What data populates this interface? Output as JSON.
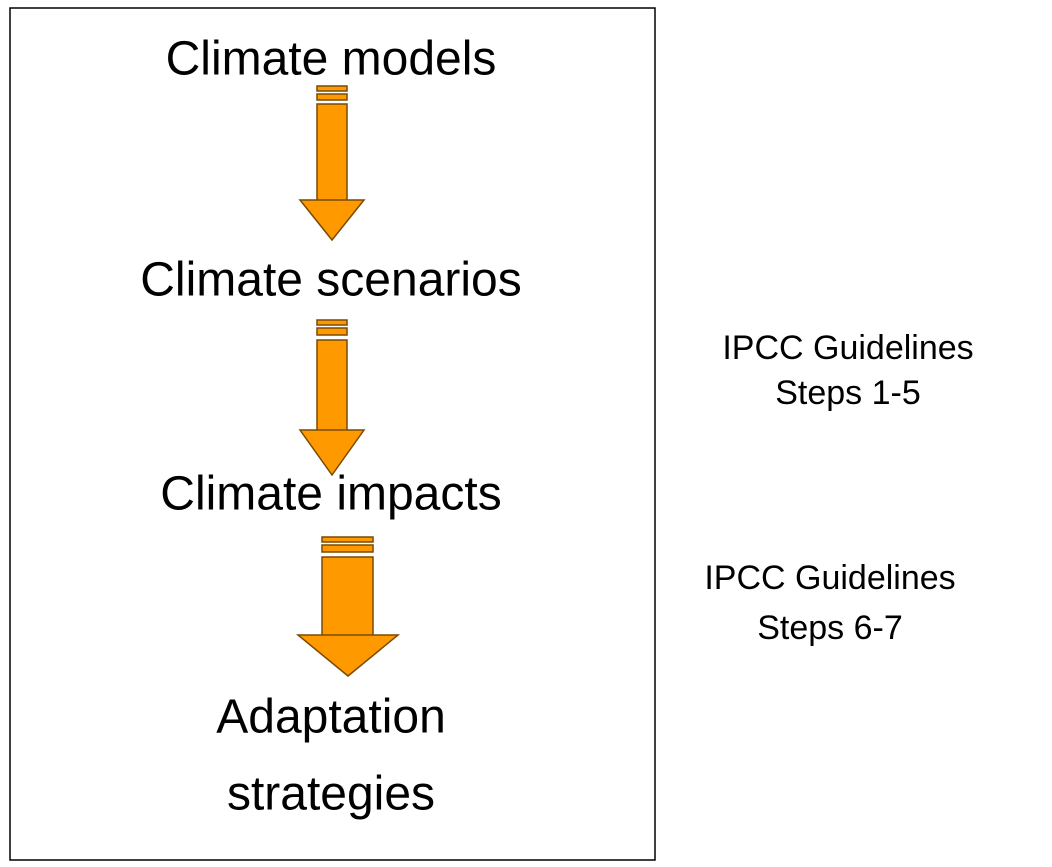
{
  "nodes": [
    {
      "lines": [
        "Climate models"
      ]
    },
    {
      "lines": [
        "Climate scenarios"
      ]
    },
    {
      "lines": [
        "Climate impacts"
      ]
    },
    {
      "lines": [
        "Adaptation",
        "strategies"
      ]
    }
  ],
  "notes": [
    {
      "lines": [
        "IPCC Guidelines",
        "Steps 1-5"
      ]
    },
    {
      "lines": [
        "IPCC Guidelines",
        "Steps 6-7"
      ]
    }
  ]
}
